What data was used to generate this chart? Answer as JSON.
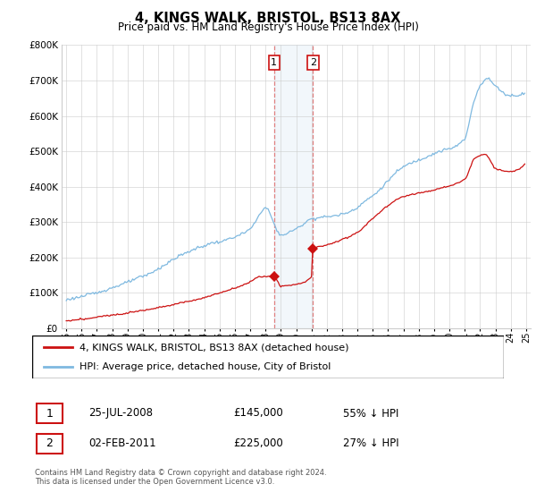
{
  "title": "4, KINGS WALK, BRISTOL, BS13 8AX",
  "subtitle": "Price paid vs. HM Land Registry's House Price Index (HPI)",
  "ylim": [
    0,
    800000
  ],
  "yticks": [
    0,
    100000,
    200000,
    300000,
    400000,
    500000,
    600000,
    700000,
    800000
  ],
  "ytick_labels": [
    "£0",
    "£100K",
    "£200K",
    "£300K",
    "£400K",
    "£500K",
    "£600K",
    "£700K",
    "£800K"
  ],
  "hpi_color": "#7fb9e0",
  "price_color": "#cc1111",
  "sale1_date": 2008.56,
  "sale1_price": 145000,
  "sale2_date": 2011.09,
  "sale2_price": 225000,
  "legend_entry1": "4, KINGS WALK, BRISTOL, BS13 8AX (detached house)",
  "legend_entry2": "HPI: Average price, detached house, City of Bristol",
  "table_row1_num": "1",
  "table_row1_date": "25-JUL-2008",
  "table_row1_price": "£145,000",
  "table_row1_hpi": "55% ↓ HPI",
  "table_row2_num": "2",
  "table_row2_date": "02-FEB-2011",
  "table_row2_price": "£225,000",
  "table_row2_hpi": "27% ↓ HPI",
  "footnote": "Contains HM Land Registry data © Crown copyright and database right 2024.\nThis data is licensed under the Open Government Licence v3.0.",
  "background_color": "#ffffff",
  "grid_color": "#cccccc"
}
